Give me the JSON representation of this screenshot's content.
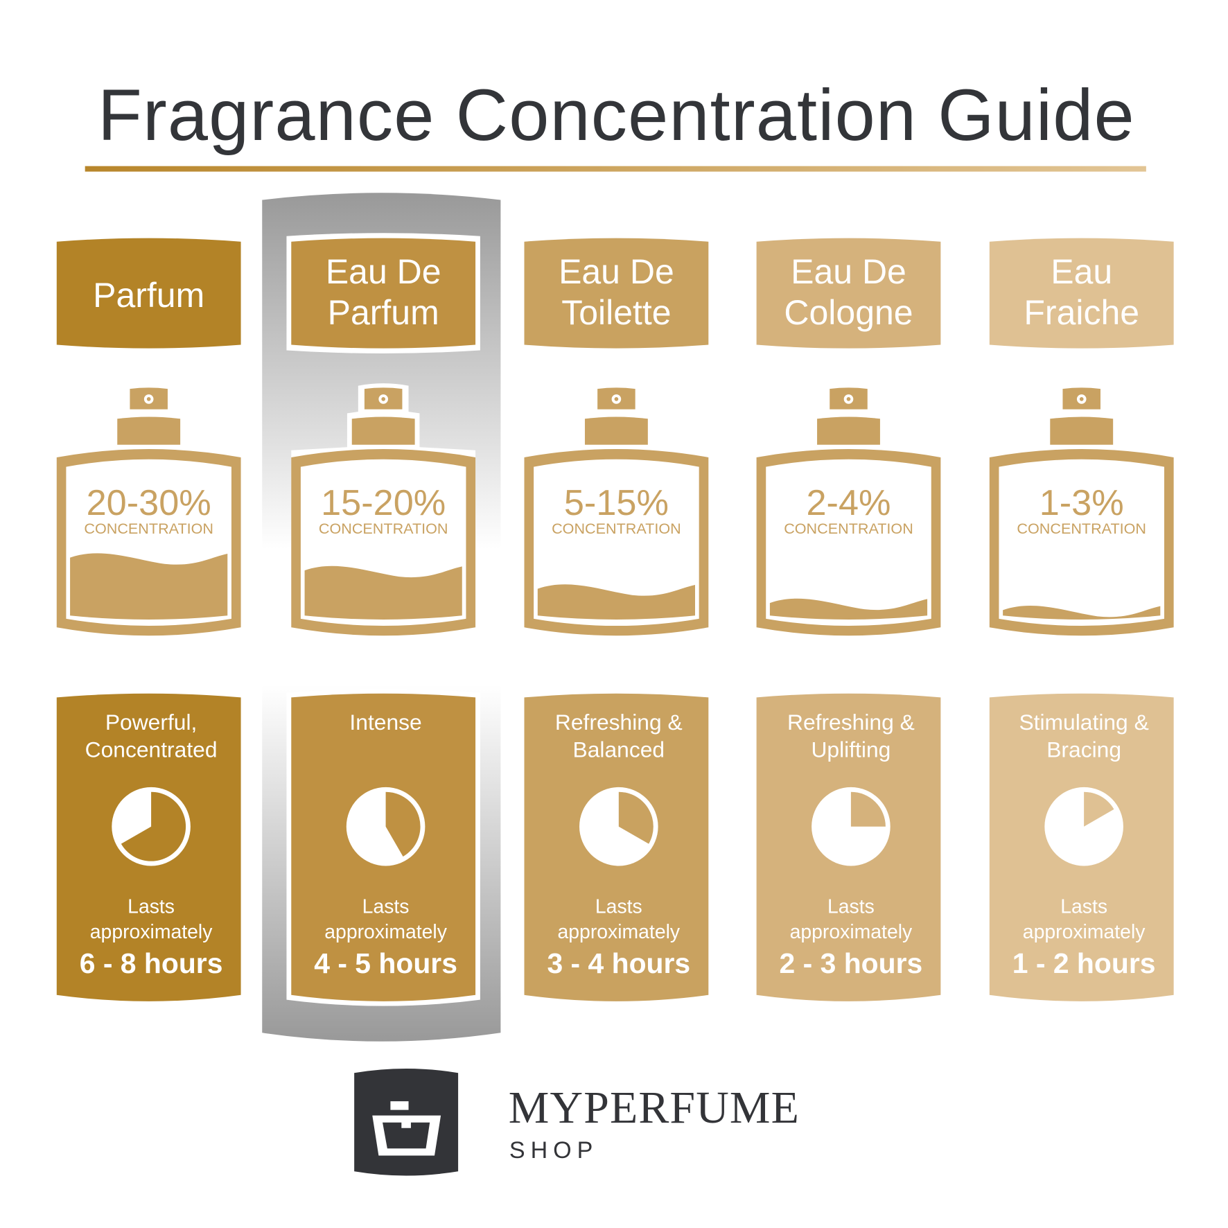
{
  "title": "Fragrance Concentration Guide",
  "colors": {
    "title": "#333539",
    "underline_start": "#b8862b",
    "underline_end": "#e2c595",
    "bottle": "#c9a262",
    "highlight_grey": "#999999",
    "logo_dark": "#333438"
  },
  "concentration_word": "CONCENTRATION",
  "lasts_line1": "Lasts",
  "lasts_line2": "approximately",
  "highlighted_index": 1,
  "types": [
    {
      "label": [
        "Parfum"
      ],
      "percent": "20-30%",
      "desc": [
        "Powerful,",
        "Concentrated"
      ],
      "hours": "6 - 8 hours",
      "pie_hours": 8,
      "fill_level": 0.42,
      "color": "#b38327"
    },
    {
      "label": [
        "Eau De",
        "Parfum"
      ],
      "percent": "15-20%",
      "desc": [
        "Intense"
      ],
      "hours": "4 - 5 hours",
      "pie_hours": 5,
      "fill_level": 0.33,
      "color": "#bf9142"
    },
    {
      "label": [
        "Eau De",
        "Toilette"
      ],
      "percent": "5-15%",
      "desc": [
        "Refreshing &",
        "Balanced"
      ],
      "hours": "3 - 4 hours",
      "pie_hours": 4,
      "fill_level": 0.2,
      "color": "#c9a260"
    },
    {
      "label": [
        "Eau De",
        "Cologne"
      ],
      "percent": "2-4%",
      "desc": [
        "Refreshing &",
        "Uplifting"
      ],
      "hours": "2 - 3 hours",
      "pie_hours": 3,
      "fill_level": 0.1,
      "color": "#d5b27c"
    },
    {
      "label": [
        "Eau",
        "Fraiche"
      ],
      "percent": "1-3%",
      "desc": [
        "Stimulating &",
        "Bracing"
      ],
      "hours": "1 - 2 hours",
      "pie_hours": 2,
      "fill_level": 0.05,
      "color": "#dfc193"
    }
  ],
  "logo": {
    "name": "MYPERFUME",
    "sub": "SHOP"
  }
}
